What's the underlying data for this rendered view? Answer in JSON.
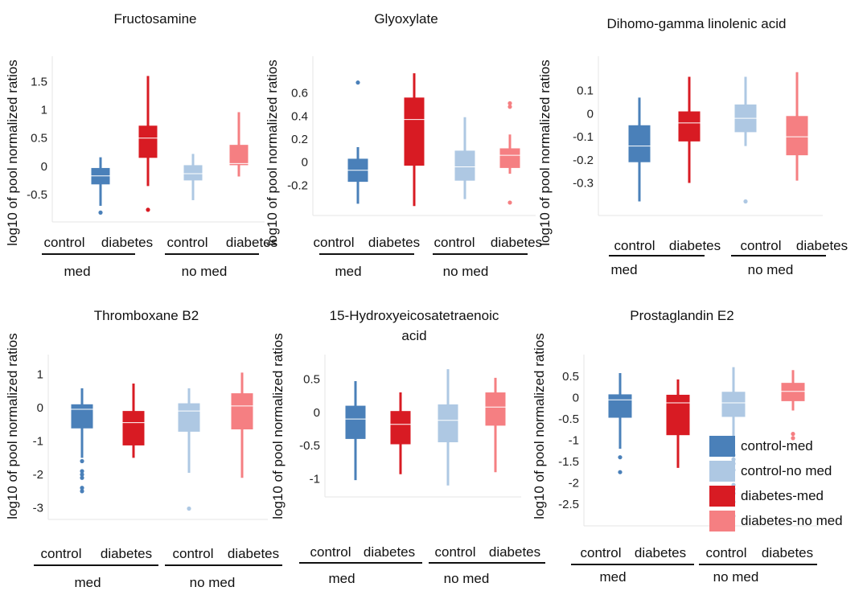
{
  "palette": {
    "control-med": "#4a80b9",
    "control-no med": "#aec8e3",
    "diabetes-med": "#d81b23",
    "diabetes-no med": "#f57f82"
  },
  "legend": {
    "placement": "bottom-right",
    "entries": [
      "control-med",
      "control-no med",
      "diabetes-med",
      "diabetes-no med"
    ]
  },
  "chart_data": [
    {
      "type": "box",
      "title": [
        "Fructosamine"
      ],
      "ylabel": "log10 of pool normalized ratios",
      "categories": [
        "control",
        "diabetes",
        "control",
        "diabetes"
      ],
      "groups": [
        "med",
        "no med"
      ],
      "yticks": [
        1.5,
        1,
        0.5,
        0,
        -0.5
      ],
      "tick_labels": [
        "1.5",
        "1",
        "0.5",
        "0",
        "-0.5"
      ],
      "ylim": [
        -0.9,
        1.75
      ],
      "grid": false,
      "boxes": [
        {
          "series": "control-med",
          "q1": -0.32,
          "median": -0.17,
          "q3": -0.03,
          "whisker_low": -0.7,
          "whisker_high": 0.16,
          "outliers": [
            -0.82
          ]
        },
        {
          "series": "diabetes-med",
          "q1": 0.15,
          "median": 0.5,
          "q3": 0.72,
          "whisker_low": -0.35,
          "whisker_high": 1.6,
          "outliers": [
            -0.77
          ]
        },
        {
          "series": "control-no med",
          "q1": -0.25,
          "median": -0.13,
          "q3": 0.02,
          "whisker_low": -0.6,
          "whisker_high": 0.22,
          "outliers": []
        },
        {
          "series": "diabetes-no med",
          "q1": 0.02,
          "median": 0.05,
          "q3": 0.38,
          "whisker_low": -0.18,
          "whisker_high": 0.96,
          "outliers": []
        }
      ]
    },
    {
      "type": "box",
      "title": [
        "Glyoxylate"
      ],
      "ylabel": "log10 of pool normalized ratios",
      "categories": [
        "control",
        "diabetes",
        "control",
        "diabetes"
      ],
      "groups": [
        "med",
        "no med"
      ],
      "yticks": [
        0.6,
        0.4,
        0.2,
        0,
        -0.2
      ],
      "tick_labels": [
        "0.6",
        "0.4",
        "0.2",
        "0",
        "-0.2"
      ],
      "ylim": [
        -0.42,
        0.82
      ],
      "grid": false,
      "boxes": [
        {
          "series": "control-med",
          "q1": -0.17,
          "median": -0.07,
          "q3": 0.03,
          "whisker_low": -0.36,
          "whisker_high": 0.13,
          "outliers": [
            0.69
          ]
        },
        {
          "series": "diabetes-med",
          "q1": -0.03,
          "median": 0.37,
          "q3": 0.56,
          "whisker_low": -0.38,
          "whisker_high": 0.77,
          "outliers": []
        },
        {
          "series": "control-no med",
          "q1": -0.16,
          "median": -0.04,
          "q3": 0.1,
          "whisker_low": -0.32,
          "whisker_high": 0.39,
          "outliers": []
        },
        {
          "series": "diabetes-no med",
          "q1": -0.05,
          "median": 0.06,
          "q3": 0.12,
          "whisker_low": -0.1,
          "whisker_high": 0.24,
          "outliers": [
            0.51,
            0.48,
            -0.35
          ]
        }
      ]
    },
    {
      "type": "box",
      "title": [
        "Dihomo-gamma linolenic acid"
      ],
      "ylabel": "log10 of pool normalized ratios",
      "categories": [
        "control",
        "diabetes",
        "control",
        "diabetes"
      ],
      "groups": [
        "med",
        "no med"
      ],
      "yticks": [
        0.1,
        0,
        -0.1,
        -0.2,
        -0.3
      ],
      "tick_labels": [
        "0.1",
        "0",
        "-0.1",
        "-0.2",
        "-0.3"
      ],
      "ylim": [
        -0.42,
        0.2
      ],
      "grid": false,
      "boxes": [
        {
          "series": "control-med",
          "q1": -0.21,
          "median": -0.14,
          "q3": -0.05,
          "whisker_low": -0.38,
          "whisker_high": 0.07,
          "outliers": []
        },
        {
          "series": "diabetes-med",
          "q1": -0.12,
          "median": -0.04,
          "q3": 0.01,
          "whisker_low": -0.3,
          "whisker_high": 0.16,
          "outliers": []
        },
        {
          "series": "control-no med",
          "q1": -0.08,
          "median": -0.02,
          "q3": 0.04,
          "whisker_low": -0.14,
          "whisker_high": 0.16,
          "outliers": [
            -0.38
          ]
        },
        {
          "series": "diabetes-no med",
          "q1": -0.18,
          "median": -0.1,
          "q3": -0.01,
          "whisker_low": -0.29,
          "whisker_high": 0.18,
          "outliers": []
        }
      ]
    },
    {
      "type": "box",
      "title": [
        "Thromboxane B2"
      ],
      "ylabel": "log10 of pool normalized ratios",
      "categories": [
        "control",
        "diabetes",
        "control",
        "diabetes"
      ],
      "groups": [
        "med",
        "no med"
      ],
      "yticks": [
        1,
        0,
        -1,
        -2,
        -3
      ],
      "tick_labels": [
        "1",
        "0",
        "-1",
        "-2",
        "-3"
      ],
      "ylim": [
        -3.2,
        1.25
      ],
      "grid": false,
      "boxes": [
        {
          "series": "control-med",
          "q1": -0.62,
          "median": -0.05,
          "q3": 0.1,
          "whisker_low": -1.5,
          "whisker_high": 0.58,
          "outliers": [
            -1.6,
            -1.9,
            -2.0,
            -2.1,
            -2.4,
            -2.5
          ]
        },
        {
          "series": "diabetes-med",
          "q1": -1.13,
          "median": -0.45,
          "q3": -0.1,
          "whisker_low": -1.5,
          "whisker_high": 0.72,
          "outliers": []
        },
        {
          "series": "control-no med",
          "q1": -0.72,
          "median": -0.1,
          "q3": 0.13,
          "whisker_low": -1.95,
          "whisker_high": 0.58,
          "outliers": [
            -3.02
          ]
        },
        {
          "series": "diabetes-no med",
          "q1": -0.65,
          "median": 0.05,
          "q3": 0.43,
          "whisker_low": -2.1,
          "whisker_high": 1.05,
          "outliers": []
        }
      ]
    },
    {
      "type": "box",
      "title": [
        "15-Hydroxyeicosatetraenoic",
        "acid"
      ],
      "ylabel": "log10 of pool normalized ratios",
      "categories": [
        "control",
        "diabetes",
        "control",
        "diabetes"
      ],
      "groups": [
        "med",
        "no med"
      ],
      "yticks": [
        0.5,
        0,
        -0.5,
        -1
      ],
      "tick_labels": [
        "0.5",
        "0",
        "-0.5",
        "-1"
      ],
      "ylim": [
        -1.2,
        0.7
      ],
      "grid": false,
      "boxes": [
        {
          "series": "control-med",
          "q1": -0.4,
          "median": -0.1,
          "q3": 0.1,
          "whisker_low": -1.02,
          "whisker_high": 0.47,
          "outliers": []
        },
        {
          "series": "diabetes-med",
          "q1": -0.48,
          "median": -0.18,
          "q3": 0.02,
          "whisker_low": -0.93,
          "whisker_high": 0.3,
          "outliers": []
        },
        {
          "series": "control-no med",
          "q1": -0.45,
          "median": -0.12,
          "q3": 0.12,
          "whisker_low": -1.1,
          "whisker_high": 0.65,
          "outliers": []
        },
        {
          "series": "diabetes-no med",
          "q1": -0.2,
          "median": 0.08,
          "q3": 0.3,
          "whisker_low": -0.9,
          "whisker_high": 0.52,
          "outliers": []
        }
      ]
    },
    {
      "type": "box",
      "title": [
        "Prostaglandin E2"
      ],
      "ylabel": "log10 of pool normalized ratios",
      "categories": [
        "control",
        "diabetes",
        "control",
        "diabetes"
      ],
      "groups": [
        "med",
        "no med"
      ],
      "yticks": [
        0.5,
        0,
        -0.5,
        -1,
        -1.5,
        -2,
        -2.5
      ],
      "tick_labels": [
        "0.5",
        "0",
        "-0.5",
        "-1",
        "-1.5",
        "-2",
        "-2.5"
      ],
      "ylim": [
        -2.9,
        0.75
      ],
      "grid": false,
      "boxes": [
        {
          "series": "control-med",
          "q1": -0.47,
          "median": -0.05,
          "q3": 0.08,
          "whisker_low": -1.2,
          "whisker_high": 0.58,
          "outliers": [
            -1.4,
            -1.75
          ]
        },
        {
          "series": "diabetes-med",
          "q1": -0.88,
          "median": -0.12,
          "q3": 0.07,
          "whisker_low": -1.65,
          "whisker_high": 0.43,
          "outliers": []
        },
        {
          "series": "control-no med",
          "q1": -0.45,
          "median": -0.12,
          "q3": 0.14,
          "whisker_low": -1.2,
          "whisker_high": 0.72,
          "outliers": [
            -1.35,
            -1.45,
            -1.55,
            -1.7,
            -2.05,
            -2.15,
            -2.25,
            -2.45,
            -2.78
          ]
        },
        {
          "series": "diabetes-no med",
          "q1": -0.08,
          "median": 0.15,
          "q3": 0.35,
          "whisker_low": -0.3,
          "whisker_high": 0.65,
          "outliers": [
            -0.85,
            -0.95
          ]
        }
      ]
    }
  ]
}
